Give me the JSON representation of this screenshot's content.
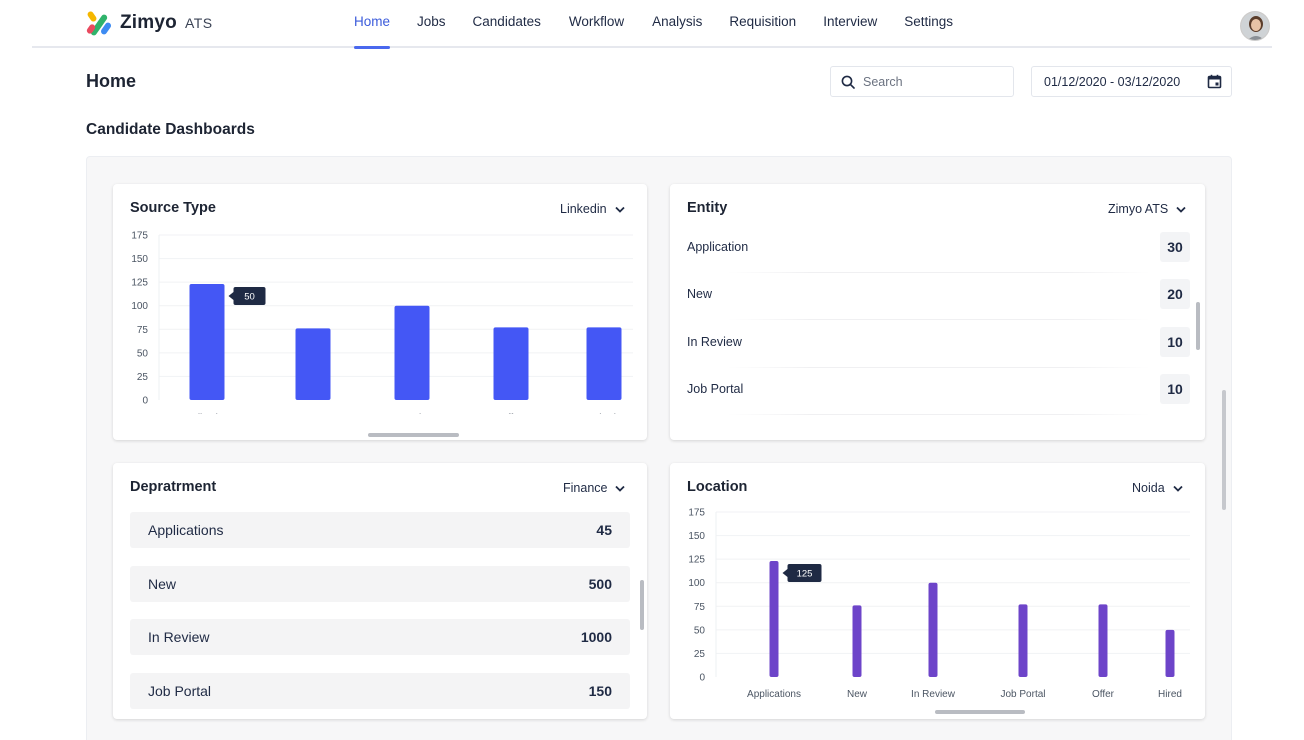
{
  "app": {
    "name": "Zimyo",
    "suffix": "ATS"
  },
  "nav": {
    "items": [
      {
        "label": "Home",
        "active": true
      },
      {
        "label": "Jobs",
        "active": false
      },
      {
        "label": "Candidates",
        "active": false
      },
      {
        "label": "Workflow",
        "active": false
      },
      {
        "label": "Analysis",
        "active": false
      },
      {
        "label": "Requisition",
        "active": false
      },
      {
        "label": "Interview",
        "active": false
      },
      {
        "label": "Settings",
        "active": false
      }
    ]
  },
  "page": {
    "title": "Home"
  },
  "search": {
    "placeholder": "Search",
    "icon": "search-icon"
  },
  "date_range": {
    "value": "01/12/2020 - 03/12/2020",
    "icon": "calendar-icon"
  },
  "section": {
    "title": "Candidate Dashboards"
  },
  "colors": {
    "accent": "#4a68ee",
    "source_bar": "#4457f5",
    "location_bar": "#6d44c9",
    "tooltip_bg": "#1f2a44"
  },
  "cards": {
    "source_type": {
      "title": "Source Type",
      "filter": "Linkedin",
      "tooltip": "50"
    },
    "entity": {
      "title": "Entity",
      "filter": "Zimyo ATS",
      "rows": [
        {
          "label": "Application",
          "value": "30"
        },
        {
          "label": "New",
          "value": "20"
        },
        {
          "label": "In Review",
          "value": "10"
        },
        {
          "label": "Job Portal",
          "value": "10"
        }
      ]
    },
    "department": {
      "title": "Depratrment",
      "filter": "Finance",
      "rows": [
        {
          "label": "Applications",
          "value": "45"
        },
        {
          "label": "New",
          "value": "500"
        },
        {
          "label": "In Review",
          "value": "1000"
        },
        {
          "label": "Job Portal",
          "value": "150"
        }
      ]
    },
    "location": {
      "title": "Location",
      "filter": "Noida",
      "tooltip": "125"
    }
  },
  "chart_data": [
    {
      "type": "bar",
      "title": "Source Type",
      "categories": [
        "Applications",
        "New",
        "In Review",
        "Offer",
        "Hired"
      ],
      "values": [
        123,
        76,
        100,
        77,
        77
      ],
      "yticks": [
        175,
        150,
        125,
        100,
        75,
        50,
        25,
        0
      ],
      "ylim": [
        0,
        175
      ],
      "grid": true
    },
    {
      "type": "bar",
      "title": "Location",
      "categories": [
        "Applications",
        "New",
        "In Review",
        "Job Portal",
        "Offer",
        "Hired"
      ],
      "values": [
        123,
        76,
        100,
        77,
        77,
        50
      ],
      "yticks": [
        175,
        150,
        125,
        100,
        75,
        50,
        25,
        0
      ],
      "ylim": [
        0,
        175
      ],
      "grid": true
    }
  ]
}
